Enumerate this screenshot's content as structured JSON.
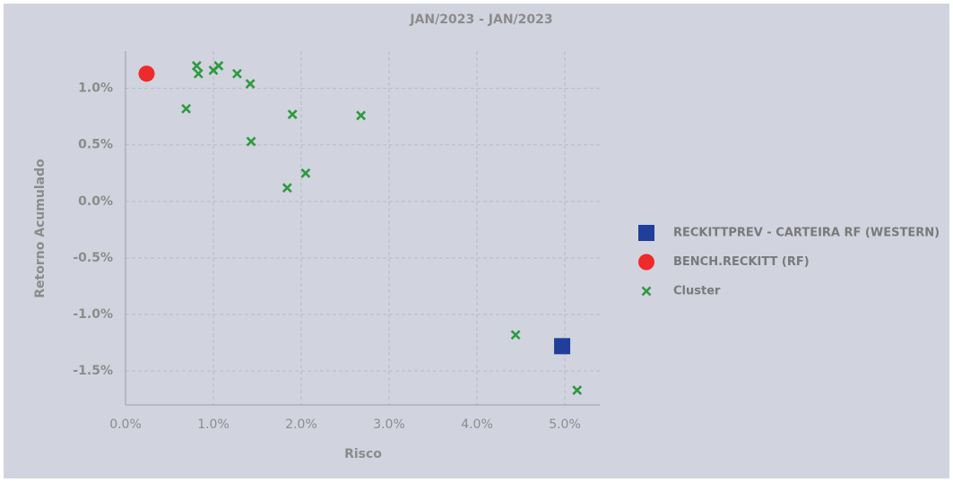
{
  "chart_data": {
    "type": "scatter",
    "title": "JAN/2023 - JAN/2023",
    "xlabel": "Risco",
    "ylabel": "Retorno Acumulado",
    "xlim": [
      0,
      5.4
    ],
    "ylim": [
      -1.8,
      1.33
    ],
    "xticks": [
      {
        "value": 0,
        "label": "0.0%"
      },
      {
        "value": 1,
        "label": "1.0%"
      },
      {
        "value": 2,
        "label": "2.0%"
      },
      {
        "value": 3,
        "label": "3.0%"
      },
      {
        "value": 4,
        "label": "4.0%"
      },
      {
        "value": 5,
        "label": "5.0%"
      }
    ],
    "yticks": [
      {
        "value": -1.5,
        "label": "-1.5%"
      },
      {
        "value": -1,
        "label": "-1.0%"
      },
      {
        "value": -0.5,
        "label": "-0.5%"
      },
      {
        "value": 0,
        "label": "0.0%"
      },
      {
        "value": 0.5,
        "label": "0.5%"
      },
      {
        "value": 1,
        "label": "1.0%"
      }
    ],
    "grid": true,
    "legend": "right",
    "series": [
      {
        "name": "RECKITTPREV - CARTEIRA RF (WESTERN)",
        "color": "#1f3f9a",
        "marker": "square",
        "x": [
          4.97
        ],
        "values": [
          -1.28
        ]
      },
      {
        "name": "BENCH.RECKITT (RF)",
        "color": "#ee2a2a",
        "marker": "circle",
        "x": [
          0.24
        ],
        "values": [
          1.13
        ]
      },
      {
        "name": "Cluster",
        "color": "#2e9a3e",
        "marker": "x",
        "x": [
          0.81,
          0.83,
          1.0,
          1.06,
          1.27,
          1.42,
          0.69,
          1.43,
          1.9,
          2.68,
          2.05,
          1.84,
          4.44,
          5.14
        ],
        "values": [
          1.2,
          1.13,
          1.16,
          1.2,
          1.13,
          1.04,
          0.82,
          0.53,
          0.77,
          0.76,
          0.25,
          0.12,
          -1.18,
          -1.67
        ]
      }
    ]
  }
}
